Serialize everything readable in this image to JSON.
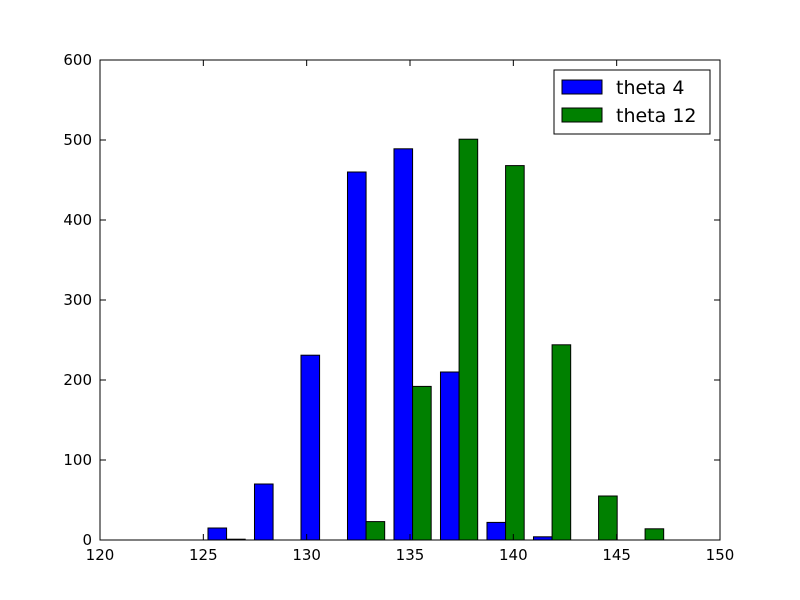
{
  "chart_data": {
    "type": "bar",
    "bin_edges": [
      125,
      127.25,
      129.5,
      131.75,
      134,
      136.25,
      138.5,
      140.75,
      143,
      145.25,
      147.5
    ],
    "series": [
      {
        "name": "theta 4",
        "color": "#0000ff",
        "values": [
          15,
          70,
          231,
          460,
          489,
          210,
          22,
          4,
          0,
          0
        ]
      },
      {
        "name": "theta 12",
        "color": "#008000",
        "values": [
          1,
          0,
          0,
          23,
          192,
          501,
          468,
          244,
          55,
          14
        ]
      }
    ],
    "xlim": [
      120,
      150
    ],
    "ylim": [
      0,
      600
    ],
    "xticks": [
      "120",
      "125",
      "130",
      "135",
      "140",
      "145",
      "150"
    ],
    "yticks": [
      "0",
      "100",
      "200",
      "300",
      "400",
      "500",
      "600"
    ],
    "legend_position": "top-right",
    "grid": false
  }
}
